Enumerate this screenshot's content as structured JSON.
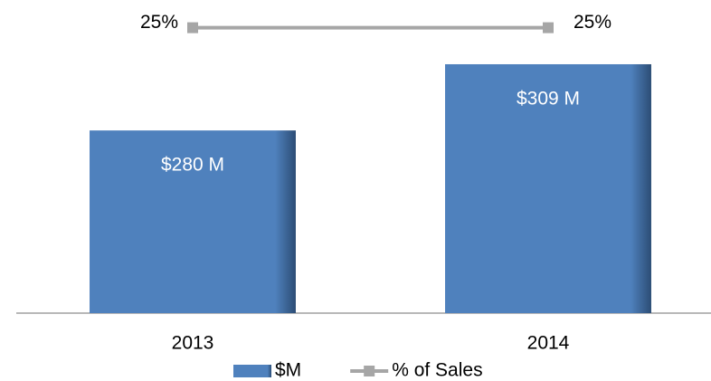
{
  "chart_data": {
    "type": "bar",
    "categories": [
      "2013",
      "2014"
    ],
    "series": [
      {
        "name": "$M",
        "color": "#4f81bd",
        "values": [
          280,
          309
        ],
        "value_labels": [
          "$280 M",
          "$309 M"
        ]
      },
      {
        "name": "% of Sales",
        "type": "line",
        "axis": "y2",
        "color": "#a6a6a6",
        "values": [
          25,
          25
        ],
        "value_labels": [
          "25%",
          "25%"
        ]
      }
    ],
    "ylim": [
      200,
      330
    ],
    "y2lim": [
      0,
      26
    ],
    "legend": "bottom"
  }
}
